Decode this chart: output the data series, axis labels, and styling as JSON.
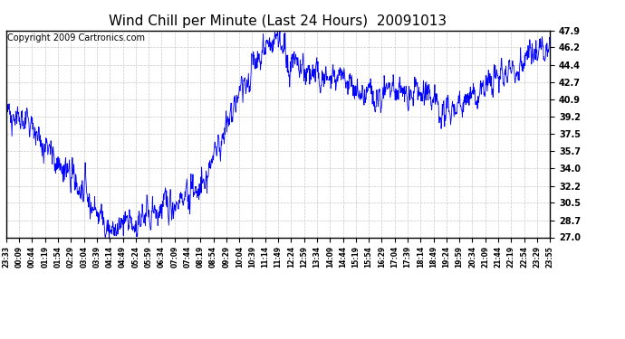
{
  "title": "Wind Chill per Minute (Last 24 Hours)  20091013",
  "copyright": "Copyright 2009 Cartronics.com",
  "yticks": [
    27.0,
    28.7,
    30.5,
    32.2,
    34.0,
    35.7,
    37.5,
    39.2,
    40.9,
    42.7,
    44.4,
    46.2,
    47.9
  ],
  "ylim": [
    27.0,
    47.9
  ],
  "xtick_labels": [
    "23:33",
    "00:09",
    "00:44",
    "01:19",
    "01:54",
    "02:29",
    "03:04",
    "03:39",
    "04:14",
    "04:49",
    "05:24",
    "05:59",
    "06:34",
    "07:09",
    "07:44",
    "08:19",
    "08:54",
    "09:29",
    "10:04",
    "10:39",
    "11:14",
    "11:49",
    "12:24",
    "12:59",
    "13:34",
    "14:09",
    "14:44",
    "15:19",
    "15:54",
    "16:29",
    "17:04",
    "17:39",
    "18:14",
    "18:49",
    "19:24",
    "19:59",
    "20:34",
    "21:09",
    "21:44",
    "22:19",
    "22:54",
    "23:29",
    "23:55"
  ],
  "line_color": "#0000ff",
  "bg_color": "#ffffff",
  "grid_color": "#c8c8c8",
  "title_fontsize": 11,
  "copyright_fontsize": 7
}
